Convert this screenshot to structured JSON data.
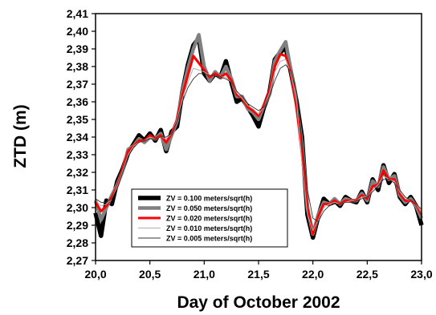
{
  "chart_data": {
    "type": "line",
    "xlabel": "Day of October 2002",
    "ylabel": "ZTD (m)",
    "xlim": [
      20.0,
      23.0
    ],
    "ylim": [
      2.27,
      2.41
    ],
    "x_ticks": [
      "20,0",
      "20,5",
      "21,0",
      "21,5",
      "22,0",
      "22,5",
      "23,0"
    ],
    "x_tick_values": [
      20.0,
      20.5,
      21.0,
      21.5,
      22.0,
      22.5,
      23.0
    ],
    "y_ticks": [
      "2,27",
      "2,28",
      "2,29",
      "2,30",
      "2,31",
      "2,32",
      "2,33",
      "2,34",
      "2,35",
      "2,36",
      "2,37",
      "2,38",
      "2,39",
      "2,40",
      "2,41"
    ],
    "y_tick_values": [
      2.27,
      2.28,
      2.29,
      2.3,
      2.31,
      2.32,
      2.33,
      2.34,
      2.35,
      2.36,
      2.37,
      2.38,
      2.39,
      2.4,
      2.41
    ],
    "grid": false,
    "legend_position": "bottom-left",
    "x": [
      20.0,
      20.05,
      20.1,
      20.15,
      20.2,
      20.25,
      20.3,
      20.35,
      20.4,
      20.45,
      20.5,
      20.55,
      20.6,
      20.65,
      20.7,
      20.75,
      20.8,
      20.85,
      20.9,
      20.95,
      21.0,
      21.05,
      21.1,
      21.15,
      21.2,
      21.25,
      21.3,
      21.35,
      21.4,
      21.45,
      21.5,
      21.55,
      21.6,
      21.65,
      21.7,
      21.75,
      21.8,
      21.85,
      21.9,
      21.95,
      22.0,
      22.05,
      22.1,
      22.15,
      22.2,
      22.25,
      22.3,
      22.35,
      22.4,
      22.45,
      22.5,
      22.55,
      22.6,
      22.65,
      22.7,
      22.75,
      22.8,
      22.85,
      22.9,
      22.95,
      23.0
    ],
    "series": [
      {
        "name": "ZV = 0.100  meters/sqrt(h)",
        "color": "#000000",
        "values": [
          2.297,
          2.284,
          2.304,
          2.302,
          2.315,
          2.322,
          2.331,
          2.336,
          2.341,
          2.338,
          2.342,
          2.338,
          2.344,
          2.332,
          2.343,
          2.346,
          2.366,
          2.381,
          2.392,
          2.396,
          2.376,
          2.372,
          2.376,
          2.374,
          2.383,
          2.371,
          2.36,
          2.362,
          2.357,
          2.352,
          2.346,
          2.357,
          2.365,
          2.384,
          2.388,
          2.391,
          2.376,
          2.36,
          2.34,
          2.296,
          2.283,
          2.295,
          2.305,
          2.302,
          2.304,
          2.301,
          2.306,
          2.304,
          2.303,
          2.309,
          2.303,
          2.316,
          2.31,
          2.324,
          2.314,
          2.319,
          2.306,
          2.302,
          2.306,
          2.301,
          2.29
        ]
      },
      {
        "name": "ZV = 0.050  meters/sqrt(h)",
        "color": "#808080",
        "values": [
          2.304,
          2.293,
          2.3,
          2.307,
          2.313,
          2.321,
          2.333,
          2.335,
          2.339,
          2.337,
          2.34,
          2.339,
          2.342,
          2.333,
          2.341,
          2.349,
          2.366,
          2.379,
          2.39,
          2.398,
          2.38,
          2.372,
          2.377,
          2.374,
          2.38,
          2.373,
          2.363,
          2.363,
          2.356,
          2.354,
          2.35,
          2.358,
          2.364,
          2.383,
          2.389,
          2.394,
          2.377,
          2.358,
          2.336,
          2.3,
          2.285,
          2.296,
          2.303,
          2.302,
          2.305,
          2.302,
          2.305,
          2.304,
          2.304,
          2.308,
          2.304,
          2.315,
          2.312,
          2.323,
          2.316,
          2.318,
          2.307,
          2.303,
          2.305,
          2.301,
          2.294
        ]
      },
      {
        "name": "ZV = 0.020  meters/sqrt(h)",
        "color": "#ff0000",
        "values": [
          2.303,
          2.298,
          2.301,
          2.306,
          2.312,
          2.322,
          2.332,
          2.335,
          2.338,
          2.338,
          2.341,
          2.339,
          2.341,
          2.337,
          2.342,
          2.35,
          2.364,
          2.375,
          2.386,
          2.382,
          2.378,
          2.374,
          2.376,
          2.374,
          2.376,
          2.372,
          2.364,
          2.362,
          2.357,
          2.355,
          2.352,
          2.358,
          2.366,
          2.38,
          2.387,
          2.386,
          2.376,
          2.357,
          2.33,
          2.3,
          2.285,
          2.295,
          2.302,
          2.302,
          2.304,
          2.302,
          2.304,
          2.304,
          2.304,
          2.307,
          2.305,
          2.312,
          2.313,
          2.321,
          2.316,
          2.316,
          2.308,
          2.304,
          2.304,
          2.302,
          2.296
        ]
      },
      {
        "name": "ZV = 0.010  meters/sqrt(h)",
        "color": "#b0b0b0",
        "values": [
          2.304,
          2.301,
          2.302,
          2.305,
          2.312,
          2.321,
          2.33,
          2.335,
          2.337,
          2.338,
          2.34,
          2.339,
          2.34,
          2.339,
          2.342,
          2.35,
          2.362,
          2.371,
          2.379,
          2.378,
          2.377,
          2.375,
          2.375,
          2.374,
          2.374,
          2.371,
          2.365,
          2.362,
          2.358,
          2.356,
          2.353,
          2.357,
          2.365,
          2.377,
          2.383,
          2.384,
          2.376,
          2.36,
          2.325,
          2.296,
          2.287,
          2.293,
          2.3,
          2.302,
          2.303,
          2.302,
          2.303,
          2.304,
          2.304,
          2.306,
          2.306,
          2.31,
          2.313,
          2.318,
          2.316,
          2.315,
          2.309,
          2.305,
          2.304,
          2.302,
          2.297
        ]
      },
      {
        "name": "ZV = 0.005  meters/sqrt(h)",
        "color": "#333333",
        "values": [
          2.305,
          2.303,
          2.303,
          2.305,
          2.311,
          2.32,
          2.329,
          2.334,
          2.337,
          2.338,
          2.339,
          2.339,
          2.34,
          2.34,
          2.342,
          2.349,
          2.36,
          2.368,
          2.373,
          2.376,
          2.376,
          2.375,
          2.375,
          2.374,
          2.373,
          2.371,
          2.366,
          2.363,
          2.359,
          2.357,
          2.355,
          2.357,
          2.363,
          2.372,
          2.379,
          2.381,
          2.377,
          2.366,
          2.338,
          2.31,
          2.294,
          2.292,
          2.298,
          2.301,
          2.302,
          2.302,
          2.303,
          2.303,
          2.304,
          2.305,
          2.306,
          2.309,
          2.312,
          2.316,
          2.316,
          2.314,
          2.31,
          2.306,
          2.304,
          2.302,
          2.299
        ]
      }
    ]
  }
}
